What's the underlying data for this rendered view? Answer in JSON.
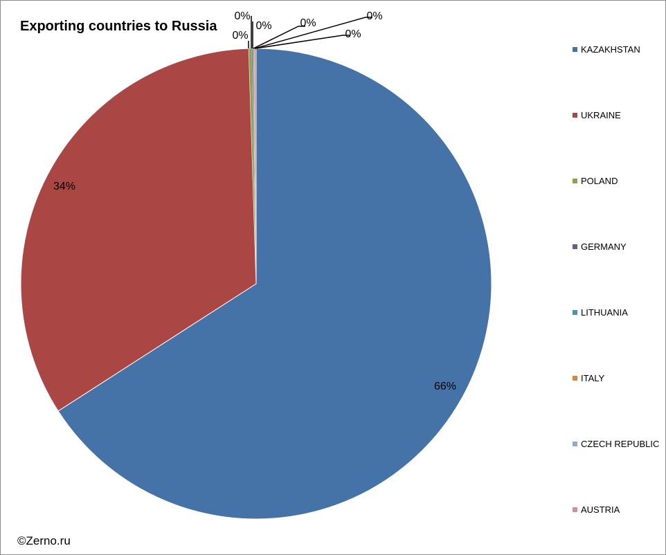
{
  "chart_data": {
    "type": "pie",
    "title": "Exporting countries to Russia",
    "categories": [
      "KAZAKHSTAN",
      "UKRAINE",
      "POLAND",
      "GERMANY",
      "LITHUANIA",
      "ITALY",
      "CZECH REPUBLIC",
      "AUSTRIA"
    ],
    "values": [
      65.9,
      33.6,
      0.2,
      0.06,
      0.05,
      0.05,
      0.05,
      0.09
    ],
    "data_labels": [
      "66%",
      "34%",
      "0%",
      "0%",
      "0%",
      "0%",
      "0%",
      "0%"
    ],
    "colors": [
      "#4572A7",
      "#AA4643",
      "#89A54E",
      "#71588F",
      "#4198AF",
      "#DB843D",
      "#93A9CF",
      "#D19392"
    ],
    "legend_position": "right"
  },
  "footer": {
    "copyright": "©Zerno.ru"
  }
}
